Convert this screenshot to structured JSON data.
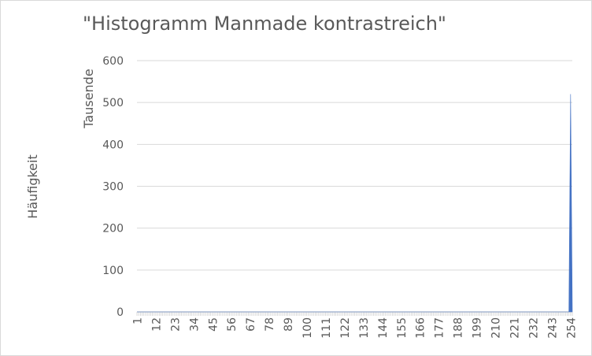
{
  "chart_data": {
    "type": "area",
    "title": "\"Histogramm Manmade kontrastreich\"",
    "ylabel": "Häufigkeit",
    "y_unit_label": "Tausende",
    "ylim": [
      0,
      600
    ],
    "y_ticks": [
      0,
      100,
      200,
      300,
      400,
      500,
      600
    ],
    "x_categories": [
      "1",
      "12",
      "23",
      "34",
      "45",
      "56",
      "67",
      "78",
      "89",
      "100",
      "111",
      "122",
      "133",
      "144",
      "155",
      "166",
      "177",
      "188",
      "199",
      "210",
      "221",
      "232",
      "243",
      "254"
    ],
    "xlim": [
      1,
      255
    ],
    "series": [
      {
        "color": "#4472c4",
        "x": [
          1,
          253,
          254,
          255
        ],
        "values": [
          0,
          0,
          520,
          0
        ]
      }
    ],
    "grid": true,
    "legend": "none"
  }
}
